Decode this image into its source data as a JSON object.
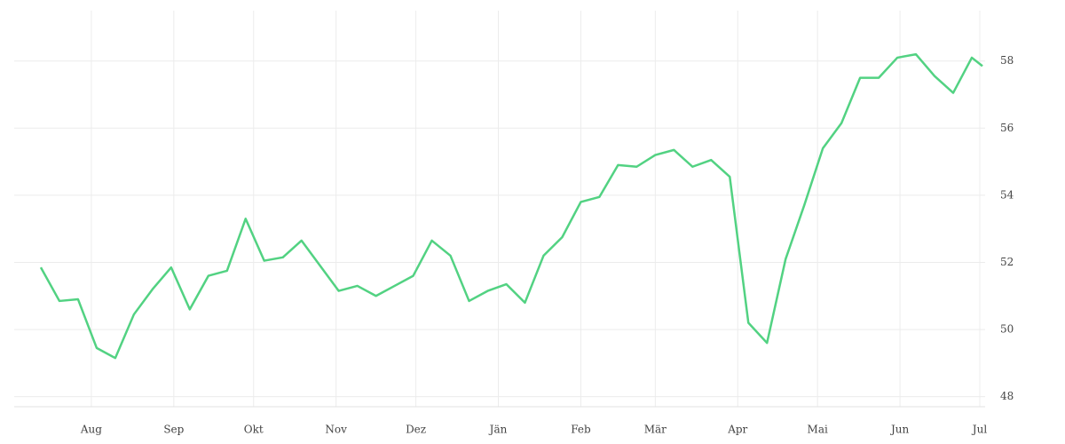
{
  "chart_data": {
    "type": "line",
    "x": [
      0,
      7,
      14,
      21,
      28,
      35,
      42,
      49,
      56,
      63,
      70,
      77,
      84,
      91,
      98,
      105,
      112,
      119,
      126,
      133,
      140,
      147,
      154,
      161,
      168,
      175,
      182,
      189,
      196,
      203,
      210,
      217,
      224,
      231,
      238,
      245,
      252,
      259,
      266,
      273,
      280,
      287,
      294,
      301,
      308,
      315,
      322,
      329,
      336,
      343,
      350,
      354
    ],
    "series": [
      {
        "color": "#52d282",
        "values": [
          51.85,
          50.85,
          50.9,
          49.45,
          49.15,
          50.45,
          51.2,
          51.85,
          50.6,
          51.6,
          51.75,
          53.3,
          52.05,
          52.15,
          52.65,
          51.9,
          51.15,
          51.3,
          51.0,
          51.3,
          51.6,
          52.65,
          52.2,
          50.85,
          51.15,
          51.35,
          50.8,
          52.2,
          52.75,
          53.8,
          53.95,
          54.9,
          54.85,
          55.2,
          55.35,
          54.85,
          55.05,
          54.55,
          50.2,
          49.6,
          52.1,
          53.7,
          55.4,
          56.15,
          57.5,
          57.5,
          58.1,
          58.2,
          57.55,
          57.05,
          58.1,
          57.85
        ]
      }
    ],
    "xlim": [
      -10,
      355
    ],
    "xticks": [
      {
        "value": 19,
        "label": "Aug"
      },
      {
        "value": 50,
        "label": "Sep"
      },
      {
        "value": 80,
        "label": "Okt"
      },
      {
        "value": 111,
        "label": "Nov"
      },
      {
        "value": 141,
        "label": "Dez"
      },
      {
        "value": 172,
        "label": "Jän"
      },
      {
        "value": 203,
        "label": "Feb"
      },
      {
        "value": 231,
        "label": "Mär"
      },
      {
        "value": 262,
        "label": "Apr"
      },
      {
        "value": 292,
        "label": "Mai"
      },
      {
        "value": 323,
        "label": "Jun"
      },
      {
        "value": 353,
        "label": "Jul"
      }
    ],
    "ylim": [
      47.7,
      59.5
    ],
    "yticks": [
      48,
      50,
      52,
      54,
      56,
      58
    ],
    "grid": true
  }
}
